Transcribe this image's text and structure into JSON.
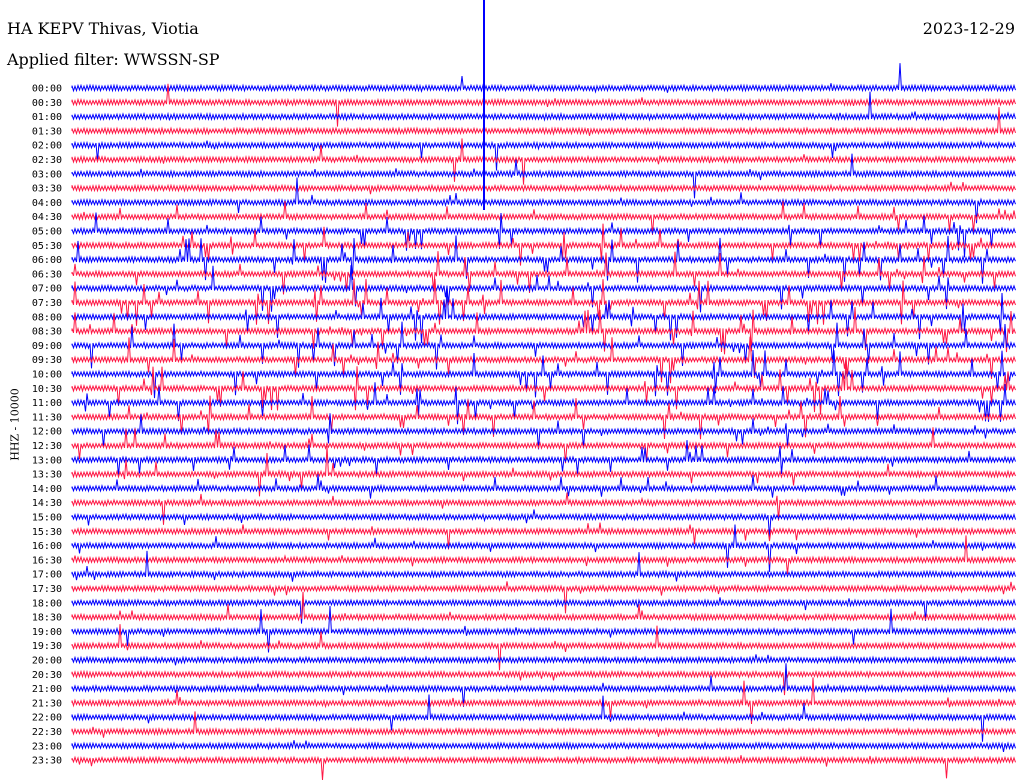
{
  "header": {
    "station": "HA KEPV Thivas, Viotia",
    "filter": "Applied filter: WWSSN-SP",
    "date": "2023-12-29"
  },
  "chart_data": {
    "type": "line",
    "title": "HA KEPV Thivas, Viotia",
    "subtitle": "Applied filter: WWSSN-SP",
    "date": "2023-12-29",
    "ylabel": "HHZ - 10000",
    "grid": false,
    "series_colors": [
      "#0000ff",
      "#ff1744"
    ],
    "row_labels": [
      "00:00",
      "00:30",
      "01:00",
      "01:30",
      "02:00",
      "02:30",
      "03:00",
      "03:30",
      "04:00",
      "04:30",
      "05:00",
      "05:30",
      "06:00",
      "06:30",
      "07:00",
      "07:30",
      "08:00",
      "08:30",
      "09:00",
      "09:30",
      "10:00",
      "10:30",
      "11:00",
      "11:30",
      "12:00",
      "12:30",
      "13:00",
      "13:30",
      "14:00",
      "14:30",
      "15:00",
      "15:30",
      "16:00",
      "16:30",
      "17:00",
      "17:30",
      "18:00",
      "18:30",
      "19:00",
      "19:30",
      "20:00",
      "20:30",
      "21:00",
      "21:30",
      "22:00",
      "22:30",
      "23:00",
      "23:30"
    ],
    "activity_level": [
      0.15,
      0.15,
      0.15,
      0.15,
      0.2,
      0.15,
      0.2,
      0.25,
      0.5,
      0.6,
      0.8,
      0.9,
      1.0,
      1.0,
      1.0,
      1.0,
      1.0,
      1.0,
      1.0,
      1.0,
      1.0,
      1.0,
      0.9,
      0.85,
      0.8,
      0.7,
      0.6,
      0.55,
      0.5,
      0.4,
      0.35,
      0.35,
      0.35,
      0.3,
      0.3,
      0.3,
      0.25,
      0.25,
      0.2,
      0.2,
      0.2,
      0.2,
      0.2,
      0.2,
      0.2,
      0.2,
      0.2,
      0.2
    ]
  }
}
